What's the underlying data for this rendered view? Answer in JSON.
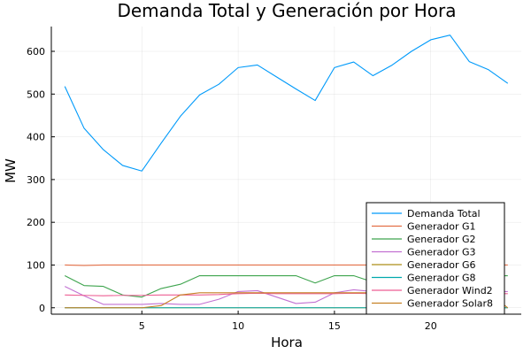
{
  "chart_data": {
    "type": "line",
    "title": "Demanda Total y Generación por Hora",
    "xlabel": "Hora",
    "ylabel": "MW",
    "xlim": [
      0.3,
      24.7
    ],
    "ylim": [
      -15,
      658
    ],
    "xticks": [
      5,
      10,
      15,
      20
    ],
    "yticks": [
      0,
      100,
      200,
      300,
      400,
      500,
      600
    ],
    "grid": true,
    "legend_position": "bottom-right",
    "x": [
      1,
      2,
      3,
      4,
      5,
      6,
      7,
      8,
      9,
      10,
      11,
      12,
      13,
      14,
      15,
      16,
      17,
      18,
      19,
      20,
      21,
      22,
      23,
      24
    ],
    "series": [
      {
        "name": "Demanda Total",
        "color": "#009AFA",
        "values": [
          518,
          420,
          370,
          333,
          320,
          385,
          448,
          498,
          523,
          562,
          568,
          540,
          512,
          485,
          562,
          575,
          543,
          568,
          600,
          627,
          638,
          576,
          557,
          525
        ]
      },
      {
        "name": "Generador G1",
        "color": "#E36F47",
        "values": [
          100,
          99,
          100,
          100,
          100,
          100,
          100,
          100,
          100,
          100,
          100,
          100,
          100,
          100,
          100,
          100,
          100,
          100,
          100,
          100,
          100,
          100,
          100,
          100
        ]
      },
      {
        "name": "Generador G2",
        "color": "#3EA44E",
        "values": [
          75,
          52,
          50,
          30,
          25,
          45,
          55,
          75,
          75,
          75,
          75,
          75,
          75,
          58,
          75,
          75,
          60,
          75,
          75,
          75,
          75,
          75,
          75,
          75
        ]
      },
      {
        "name": "Generador G3",
        "color": "#C271D2",
        "values": [
          50,
          28,
          8,
          8,
          8,
          10,
          8,
          8,
          20,
          38,
          40,
          25,
          10,
          13,
          35,
          42,
          38,
          35,
          38,
          40,
          38,
          38,
          38,
          38
        ]
      },
      {
        "name": "Generador G6",
        "color": "#AC8D18",
        "values": [
          0,
          0,
          0,
          0,
          0,
          0,
          0,
          0,
          0,
          0,
          0,
          0,
          0,
          0,
          0,
          0,
          0,
          0,
          0,
          0,
          0,
          0,
          0,
          0
        ]
      },
      {
        "name": "Generador G8",
        "color": "#00A9AD",
        "values": [
          0,
          0,
          0,
          0,
          0,
          0,
          0,
          0,
          0,
          0,
          0,
          0,
          0,
          0,
          0,
          0,
          0,
          0,
          0,
          0,
          0,
          0,
          0,
          0
        ]
      },
      {
        "name": "Generador Wind2",
        "color": "#ED5E93",
        "values": [
          30,
          29,
          28,
          29,
          29,
          30,
          30,
          30,
          31,
          33,
          34,
          33,
          33,
          33,
          33,
          34,
          33,
          33,
          33,
          33,
          33,
          33,
          33,
          33
        ]
      },
      {
        "name": "Generador Solar8",
        "color": "#C68125",
        "values": [
          0,
          0,
          0,
          0,
          0,
          5,
          30,
          35,
          35,
          35,
          35,
          35,
          35,
          35,
          35,
          35,
          35,
          35,
          35,
          35,
          35,
          35,
          35,
          0
        ]
      }
    ]
  }
}
